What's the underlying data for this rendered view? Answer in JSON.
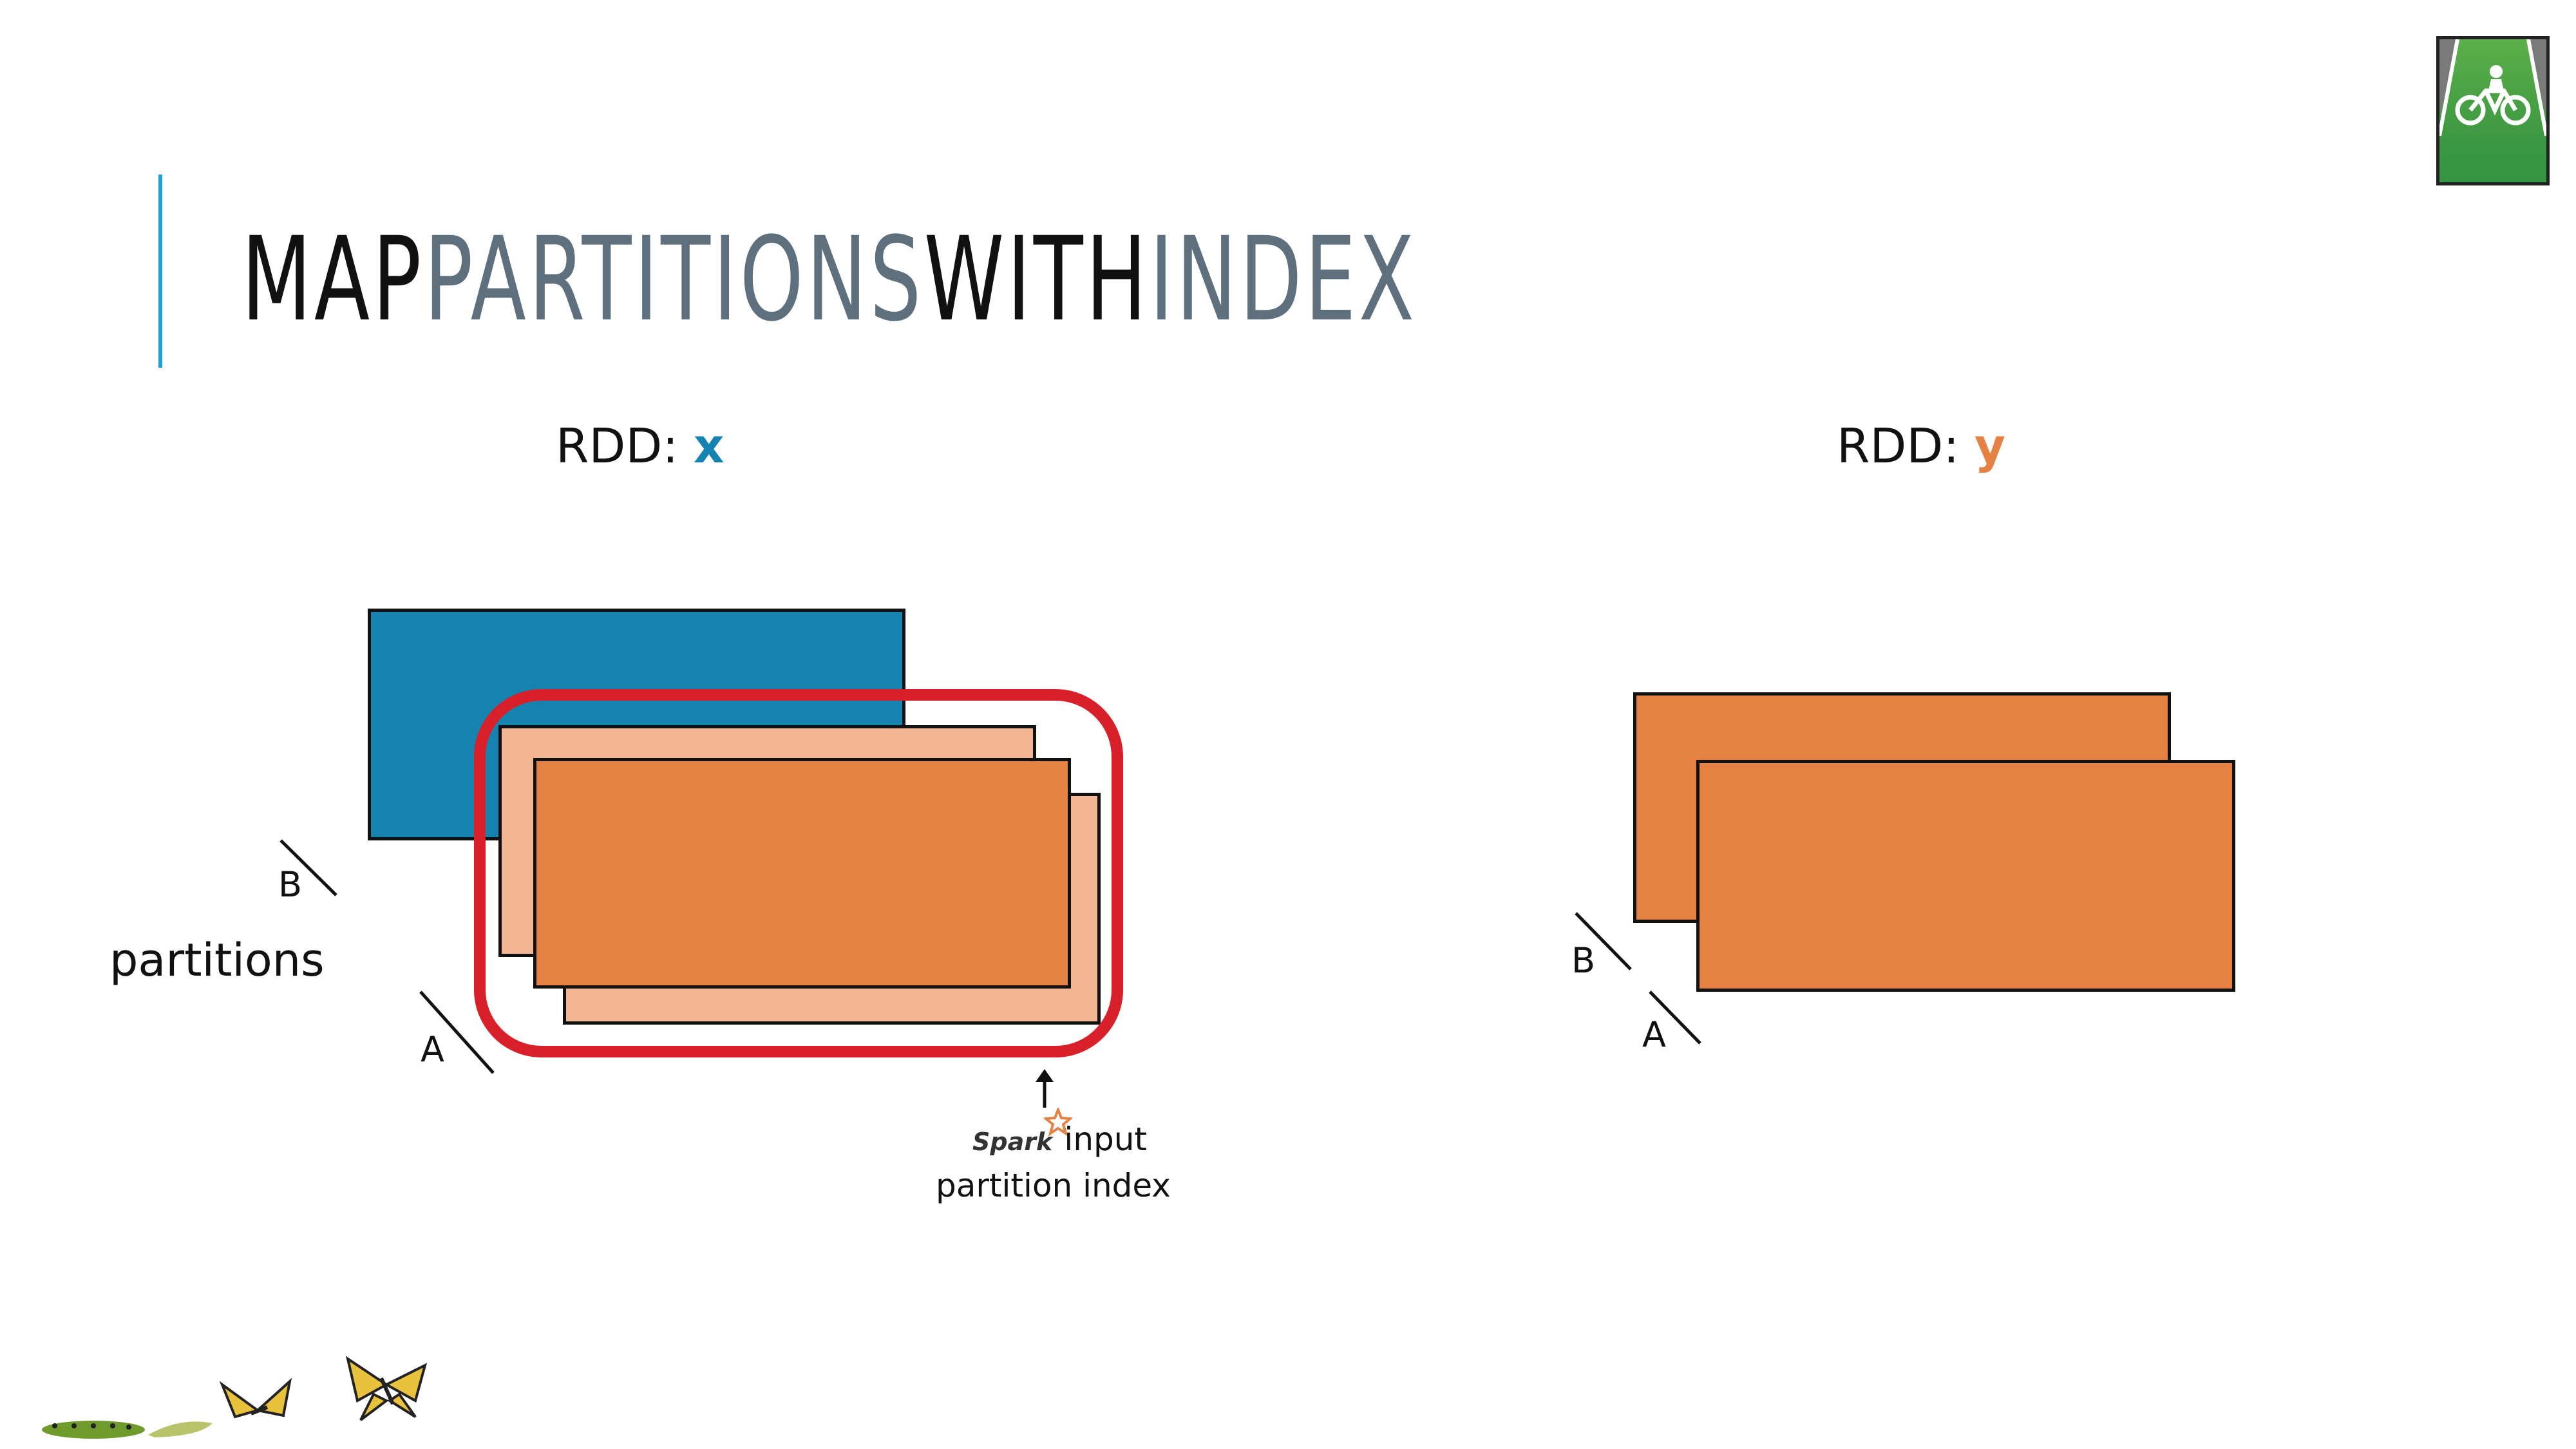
{
  "slide": {
    "title_parts": [
      {
        "text": "MAP",
        "tone": "dark"
      },
      {
        "text": "PARTITIONS",
        "tone": "grey"
      },
      {
        "text": "WITH",
        "tone": "dark"
      },
      {
        "text": "INDEX",
        "tone": "grey"
      }
    ],
    "colors": {
      "accent": "#1aa3d4",
      "rdd_x": "#1583b0",
      "rdd_y": "#e58143",
      "input_partition": "#f2b792",
      "highlight": "#d8202a",
      "title_grey": "#5e6f7d"
    }
  },
  "rdd_x": {
    "prefix": "RDD: ",
    "name": "x",
    "partition_labels": [
      "B",
      "A"
    ]
  },
  "rdd_y": {
    "prefix": "RDD: ",
    "name": "y",
    "partition_labels": [
      "B",
      "A"
    ]
  },
  "partitions_label": "partitions",
  "annotation": {
    "brand": "Spark",
    "input_label": "input",
    "caption": "partition index"
  },
  "icons": {
    "logo": "bike-lane-logo-icon",
    "footer": "butterfly-metamorphosis-icon",
    "spark": "spark-star-icon"
  }
}
